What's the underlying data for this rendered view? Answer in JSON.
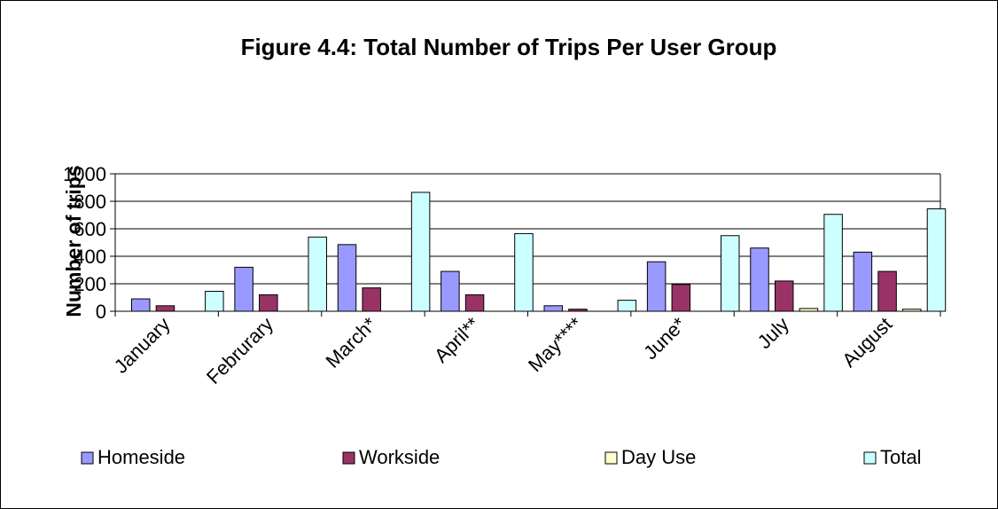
{
  "chart_data": {
    "type": "bar",
    "title": "Figure 4.4: Total Number of Trips Per User Group",
    "xlabel": "",
    "ylabel": "Number of trips",
    "ylim": [
      0,
      1000
    ],
    "yticks": [
      0,
      200,
      400,
      600,
      800,
      1000
    ],
    "grid": true,
    "legend_position": "bottom",
    "categories": [
      "January",
      "Februrary",
      "March*",
      "April**",
      "May****",
      "June*",
      "July",
      "August"
    ],
    "series": [
      {
        "name": "Homeside",
        "color": "#9999ff",
        "values": [
          90,
          320,
          485,
          290,
          40,
          360,
          460,
          430
        ]
      },
      {
        "name": "Workside",
        "color": "#993366",
        "values": [
          40,
          120,
          170,
          120,
          15,
          195,
          220,
          290
        ]
      },
      {
        "name": "Day Use",
        "color": "#ffffcc",
        "values": [
          0,
          0,
          0,
          0,
          0,
          0,
          20,
          15
        ]
      },
      {
        "name": "Total",
        "color": "#ccffff",
        "values": [
          145,
          540,
          865,
          565,
          80,
          550,
          705,
          745
        ]
      }
    ]
  }
}
